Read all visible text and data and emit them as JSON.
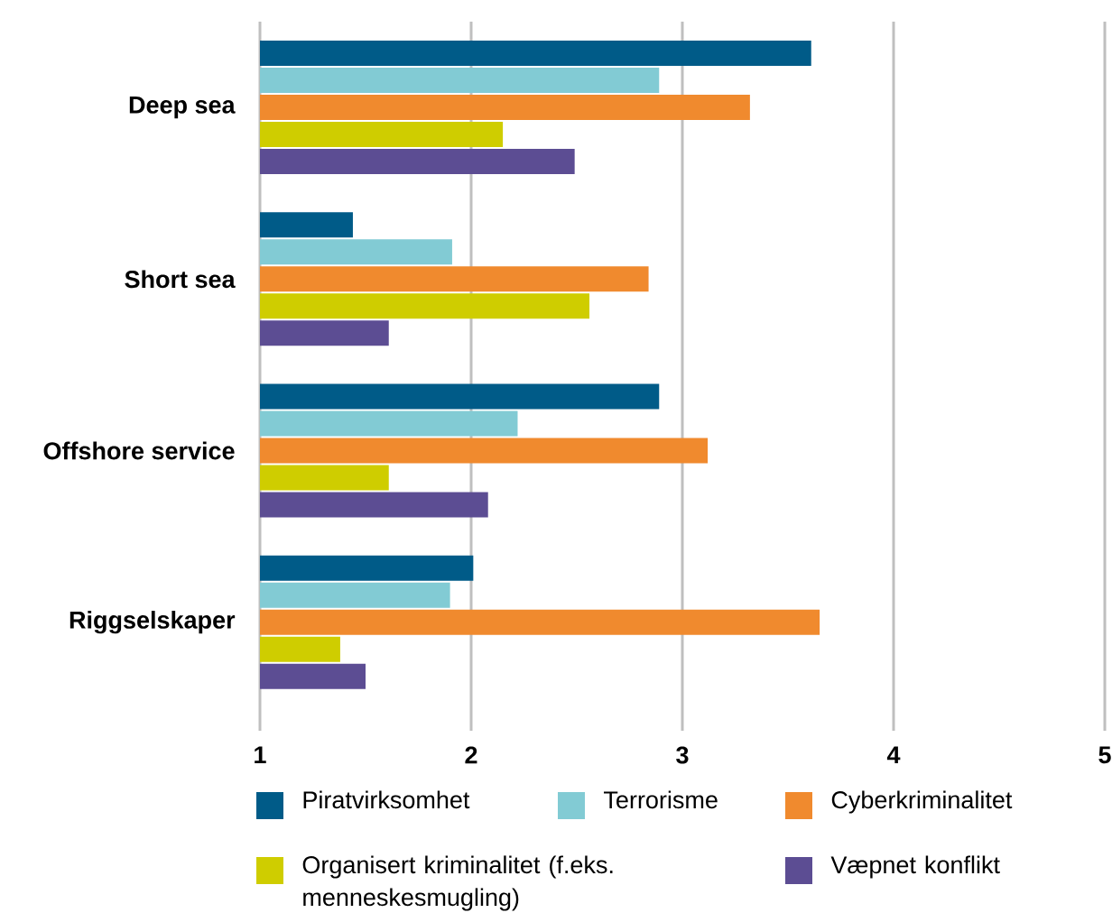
{
  "chart_data": {
    "type": "bar",
    "orientation": "horizontal",
    "categories": [
      "Deep sea",
      "Short sea",
      "Offshore service",
      "Riggselskaper"
    ],
    "series": [
      {
        "name": "Piratvirksomhet",
        "color": "#005b88",
        "values": [
          3.61,
          1.44,
          2.89,
          2.01
        ]
      },
      {
        "name": "Terrorisme",
        "color": "#82cbd4",
        "values": [
          2.89,
          1.91,
          2.22,
          1.9
        ]
      },
      {
        "name": "Cyberkriminalitet",
        "color": "#f08a2e",
        "values": [
          3.32,
          2.84,
          3.12,
          3.65
        ]
      },
      {
        "name": "Organisert kriminalitet (f.eks. menneskesmugling)",
        "color": "#cfcd00",
        "values": [
          2.15,
          2.56,
          1.61,
          1.38
        ]
      },
      {
        "name": "Væpnet konflikt",
        "color": "#5c4d93",
        "values": [
          2.49,
          1.61,
          2.08,
          1.5
        ]
      }
    ],
    "xlim": [
      1,
      5
    ],
    "xticks": [
      1,
      2,
      3,
      4,
      5
    ],
    "grid": "x",
    "legend": "bottom"
  }
}
